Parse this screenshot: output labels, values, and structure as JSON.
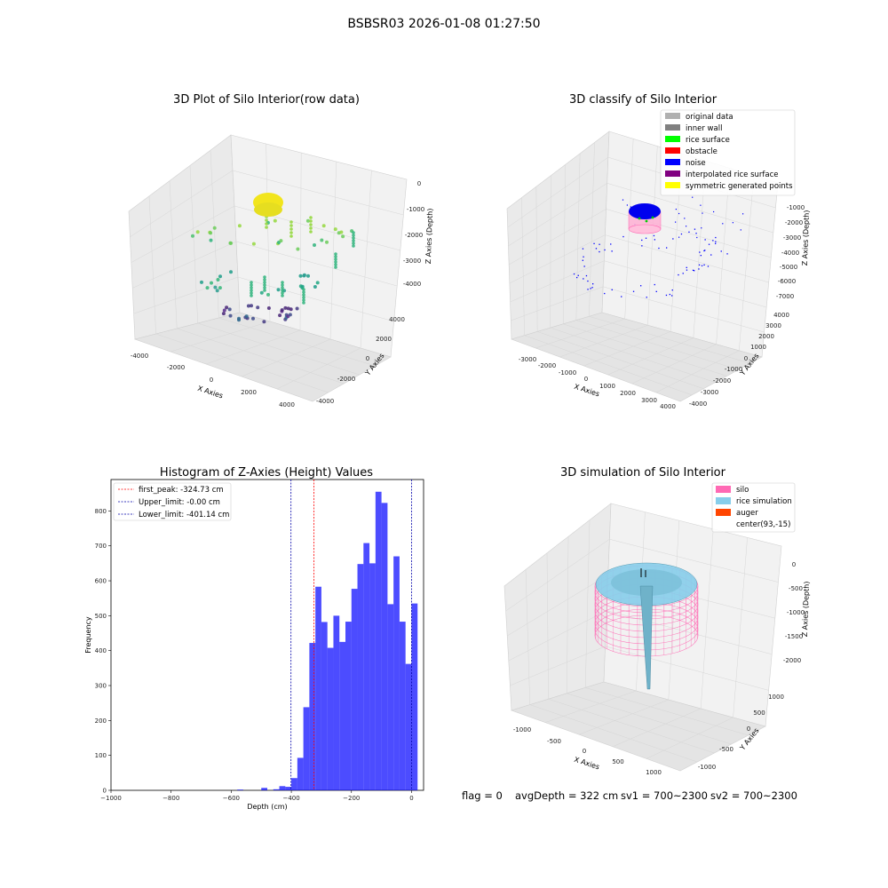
{
  "figure": {
    "suptitle": "BSBSR03 2026-01-08 01:27:50",
    "status": {
      "flag": "flag = 0",
      "avg_depth": "avgDepth = 322 cm",
      "sv1": "sv1 = 700~2300",
      "sv2": "sv2 = 700~2300"
    }
  },
  "panels": {
    "p1": {
      "title": "3D Plot of Silo Interior(row data)",
      "xlabel": "X Axies",
      "ylabel": "Y Axies",
      "zlabel": "Z Axies (Depth)",
      "xticks": [
        "-4000",
        "-2000",
        "0",
        "2000",
        "4000"
      ],
      "yticks": [
        "-4000",
        "-2000",
        "0",
        "2000",
        "4000"
      ],
      "zticks": [
        "0",
        "-1000",
        "-2000",
        "-3000",
        "-4000"
      ]
    },
    "p2": {
      "title": "3D classify of Silo Interior",
      "xlabel": "X Axies",
      "ylabel": "Y Axies",
      "zlabel": "Z Axies (Depth)",
      "xticks": [
        "-3000",
        "-2000",
        "-1000",
        "0",
        "1000",
        "2000",
        "3000",
        "4000"
      ],
      "yticks": [
        "-4000",
        "-3000",
        "-2000",
        "-1000",
        "0",
        "1000",
        "2000",
        "3000",
        "4000"
      ],
      "zticks": [
        "-1000",
        "-2000",
        "-3000",
        "-4000",
        "-5000",
        "-6000",
        "-7000"
      ],
      "legend": [
        {
          "label": "original data",
          "color": "#b0b0b0"
        },
        {
          "label": "inner wall",
          "color": "#808080"
        },
        {
          "label": "rice surface",
          "color": "#00ff00"
        },
        {
          "label": "obstacle",
          "color": "#ff0000"
        },
        {
          "label": "noise",
          "color": "#0000ff"
        },
        {
          "label": "interpolated rice surface",
          "color": "#800080"
        },
        {
          "label": "symmetric generated points",
          "color": "#ffff00"
        }
      ]
    },
    "p4": {
      "title": "3D simulation of Silo Interior",
      "xlabel": "X Axies",
      "ylabel": "Y Axies",
      "zlabel": "Z Axies (Depth)",
      "xticks": [
        "-1000",
        "-500",
        "0",
        "500",
        "1000"
      ],
      "yticks": [
        "-1000",
        "-500",
        "0",
        "500",
        "1000"
      ],
      "zticks": [
        "0",
        "-500",
        "-1000",
        "-1500",
        "-2000"
      ],
      "legend": [
        {
          "label": "silo",
          "color": "#ff69b4"
        },
        {
          "label": "rice simulation",
          "color": "#87ceeb"
        },
        {
          "label": "auger",
          "color": "#ff4500"
        },
        {
          "label": "center(93,-15)",
          "color": ""
        }
      ]
    }
  },
  "chart_data": [
    {
      "type": "bar",
      "title": "Histogram of Z-Axies (Height) Values",
      "xlabel": "Depth (cm)",
      "ylabel": "Frequency",
      "xlim": [
        -1000,
        40
      ],
      "ylim": [
        0,
        890
      ],
      "xticks": [
        -1000,
        -800,
        -600,
        -400,
        -200,
        0
      ],
      "yticks": [
        0,
        100,
        200,
        300,
        400,
        500,
        600,
        700,
        800
      ],
      "bar_color": "#0000ff",
      "bar_alpha": 0.7,
      "bin_width": 20,
      "bins": [
        {
          "x0": -580,
          "count": 2
        },
        {
          "x0": -500,
          "count": 7
        },
        {
          "x0": -460,
          "count": 3
        },
        {
          "x0": -440,
          "count": 12
        },
        {
          "x0": -420,
          "count": 10
        },
        {
          "x0": -400,
          "count": 35
        },
        {
          "x0": -380,
          "count": 93
        },
        {
          "x0": -360,
          "count": 238
        },
        {
          "x0": -340,
          "count": 422
        },
        {
          "x0": -320,
          "count": 583
        },
        {
          "x0": -300,
          "count": 482
        },
        {
          "x0": -280,
          "count": 408
        },
        {
          "x0": -260,
          "count": 500
        },
        {
          "x0": -240,
          "count": 425
        },
        {
          "x0": -220,
          "count": 483
        },
        {
          "x0": -200,
          "count": 577
        },
        {
          "x0": -180,
          "count": 648
        },
        {
          "x0": -160,
          "count": 708
        },
        {
          "x0": -140,
          "count": 650
        },
        {
          "x0": -120,
          "count": 855
        },
        {
          "x0": -100,
          "count": 823
        },
        {
          "x0": -80,
          "count": 533
        },
        {
          "x0": -60,
          "count": 670
        },
        {
          "x0": -40,
          "count": 483
        },
        {
          "x0": -20,
          "count": 362
        },
        {
          "x0": 0,
          "count": 535
        }
      ],
      "lines": [
        {
          "label": "first_peak: -324.73 cm",
          "x": -324.73,
          "color": "#ff0000"
        },
        {
          "label": "Upper_limit: -0.00 cm",
          "x": 0,
          "color": "#0000aa"
        },
        {
          "label": "Lower_limit: -401.14 cm",
          "x": -401.14,
          "color": "#0000aa"
        }
      ],
      "legend_position": "upper left"
    }
  ]
}
